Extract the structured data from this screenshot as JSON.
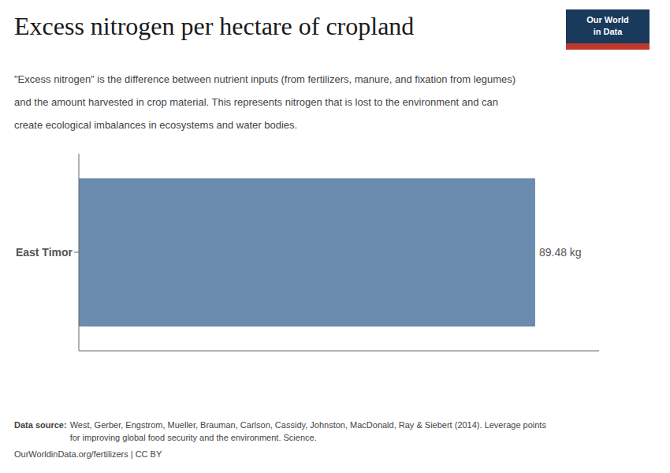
{
  "chart_data": {
    "type": "bar",
    "orientation": "horizontal",
    "title": "Excess nitrogen per hectare of cropland",
    "subtitle": "\"Excess nitrogen\" is the difference between nutrient inputs (from fertilizers, manure, and fixation from legumes)\nand the amount harvested in crop material. This represents nitrogen that is lost to the environment and can\ncreate ecological imbalances in ecosystems and water bodies.",
    "categories": [
      "East Timor"
    ],
    "values": [
      89.48
    ],
    "value_labels": [
      "89.48 kg"
    ],
    "data_labels": true,
    "color": "#6b8cae",
    "xlim": [
      0,
      102.0072
    ],
    "tick_labels": "y",
    "grid": false,
    "annotations": [
      "Our World\nin Data",
      "Data source:",
      "West, Gerber, Engstrom, Mueller, Brauman, Carlson, Cassidy, Johnston, MacDonald, Ray & Siebert (2014). Leverage points\nfor improving global food security and the environment. Science.",
      "OurWorldinData.org/fertilizers | CC BY"
    ]
  }
}
